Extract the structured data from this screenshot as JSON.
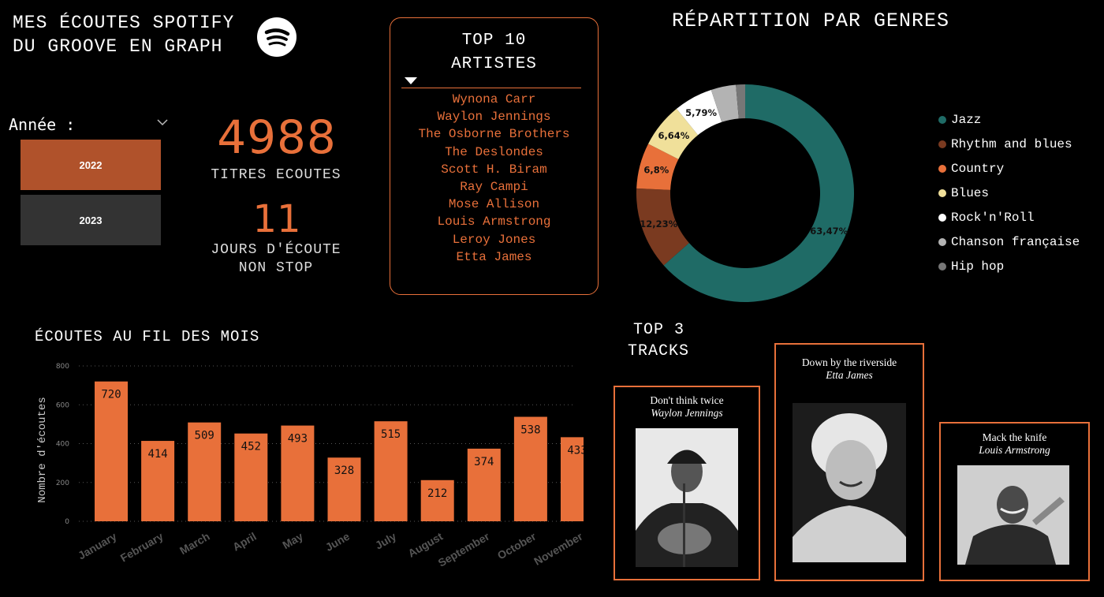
{
  "header": {
    "title_line1": "MES ÉCOUTES SPOTIFY",
    "title_line2": "DU GROOVE EN GRAPH",
    "logo_icon": "spotify-icon"
  },
  "filter": {
    "label": "Année :",
    "options": [
      "2022",
      "2023"
    ],
    "selected": "2022"
  },
  "kpis": {
    "titres_value": "4988",
    "titres_label": "TITRES ECOUTES",
    "jours_value": "11",
    "jours_label_line1": "JOURS D'ÉCOUTE",
    "jours_label_line2": "NON STOP"
  },
  "top_artists": {
    "title_line1": "TOP 10",
    "title_line2": "ARTISTES",
    "items": [
      "Wynona Carr",
      "Waylon Jennings",
      "The Osborne Brothers",
      "The Deslondes",
      "Scott H. Biram",
      "Ray Campi",
      "Mose Allison",
      "Louis Armstrong",
      "Leroy Jones",
      "Etta James"
    ]
  },
  "genres": {
    "title": "RÉPARTITION PAR GENRES",
    "colors": {
      "Jazz": "#1f6b66",
      "Rhythm and blues": "#7a3a20",
      "Country": "#e8703a",
      "Blues": "#f0e09a",
      "Rock'n'Roll": "#ffffff",
      "Chanson française": "#b3b3b3",
      "Hip hop": "#777777"
    }
  },
  "monthly": {
    "title": "ÉCOUTES AU FIL DES MOIS"
  },
  "top_tracks": {
    "title_line1": "TOP 3",
    "title_line2": "TRACKS",
    "items": [
      {
        "name": "Don't think twice",
        "artist": "Waylon Jennings"
      },
      {
        "name": "Down by the riverside",
        "artist": "Etta James"
      },
      {
        "name": "Mack the knife",
        "artist": "Louis Armstrong"
      }
    ]
  },
  "chart_data": [
    {
      "type": "pie",
      "title": "RÉPARTITION PAR GENRES",
      "categories": [
        "Jazz",
        "Rhythm and blues",
        "Country",
        "Blues",
        "Rock'n'Roll",
        "Chanson française",
        "Hip hop"
      ],
      "values": [
        63.47,
        12.23,
        6.8,
        6.64,
        5.79,
        3.7,
        1.37
      ],
      "data_labels": [
        "63,47%",
        "12,23%",
        "6,8%",
        "6,64%",
        "5,79%",
        "",
        ""
      ],
      "legend": "right"
    },
    {
      "type": "bar",
      "title": "ÉCOUTES AU FIL DES MOIS",
      "categories": [
        "January",
        "February",
        "March",
        "April",
        "May",
        "June",
        "July",
        "August",
        "September",
        "October",
        "November"
      ],
      "values": [
        720,
        414,
        509,
        452,
        493,
        328,
        515,
        212,
        374,
        538,
        433
      ],
      "ylabel": "Nombre d'écoutes",
      "xlabel": "",
      "ylim": [
        0,
        800
      ],
      "yticks": [
        0,
        200,
        400,
        600,
        800
      ],
      "grid": true,
      "color": "#e8703a"
    }
  ]
}
